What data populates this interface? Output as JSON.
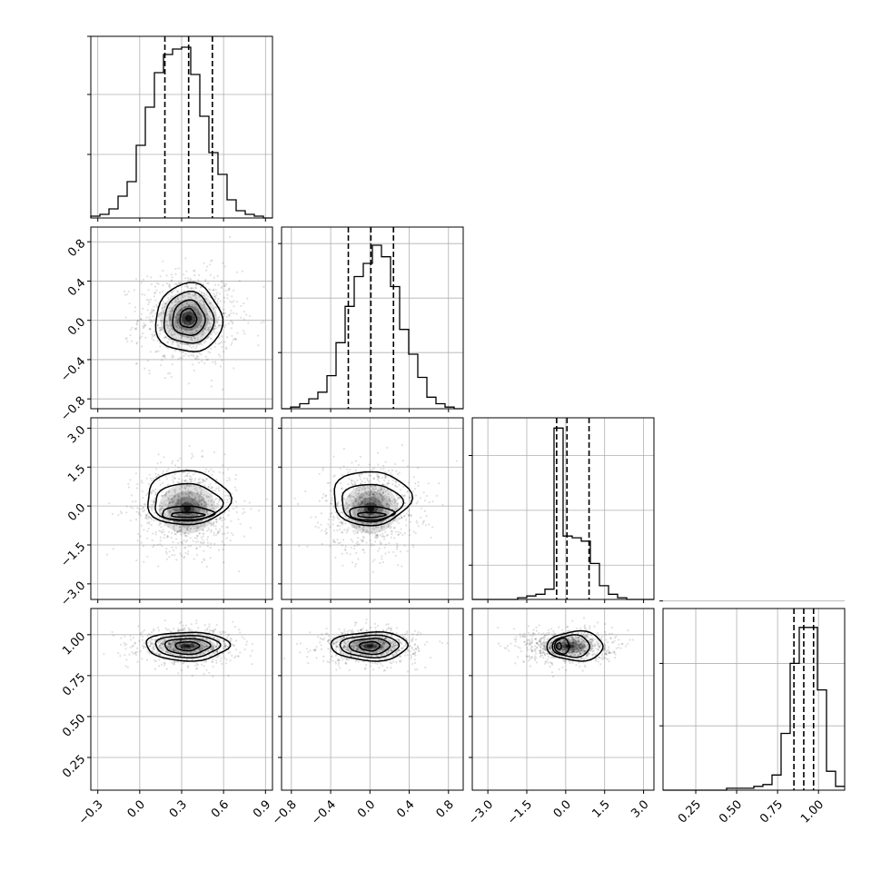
{
  "chart_data": {
    "type": "corner",
    "grid": true,
    "parameters": [
      {
        "range": [
          -0.35,
          0.95
        ],
        "ticks": [
          -0.3,
          0.0,
          0.3,
          0.6,
          0.9
        ],
        "tick_labels": [
          "−0.3",
          "0.0",
          "0.3",
          "0.6",
          "0.9"
        ],
        "quantiles": [
          0.18,
          0.35,
          0.52
        ]
      },
      {
        "range": [
          -0.9,
          0.95
        ],
        "ticks": [
          -0.8,
          -0.4,
          0.0,
          0.4,
          0.8
        ],
        "tick_labels": [
          "−0.8",
          "−0.4",
          "0.0",
          "0.4",
          "0.8"
        ],
        "quantiles": [
          -0.22,
          0.01,
          0.24
        ]
      },
      {
        "range": [
          -3.6,
          3.4
        ],
        "ticks": [
          -3.0,
          -1.5,
          0.0,
          1.5,
          3.0
        ],
        "tick_labels": [
          "−3.0",
          "−1.5",
          "0.0",
          "1.5",
          "3.0"
        ],
        "quantiles": [
          -0.35,
          0.05,
          0.9
        ]
      },
      {
        "range": [
          0.05,
          1.16
        ],
        "ticks": [
          0.25,
          0.5,
          0.75,
          1.0
        ],
        "tick_labels": [
          "0.25",
          "0.50",
          "0.75",
          "1.00"
        ],
        "quantiles": [
          0.85,
          0.91,
          0.97
        ]
      }
    ],
    "histograms": [
      {
        "edges_start": -0.35,
        "bin_width": 0.065,
        "counts": [
          0.01,
          0.02,
          0.05,
          0.12,
          0.2,
          0.4,
          0.61,
          0.8,
          0.9,
          0.93,
          0.94,
          0.79,
          0.56,
          0.36,
          0.24,
          0.1,
          0.04,
          0.02,
          0.01,
          0.0
        ],
        "ymax": 1.0,
        "yticks": [
          0.35,
          0.68,
          1.0
        ]
      },
      {
        "edges_start": -0.9,
        "bin_width": 0.0925,
        "counts": [
          0.0,
          0.01,
          0.03,
          0.06,
          0.1,
          0.2,
          0.4,
          0.62,
          0.8,
          0.88,
          0.99,
          0.92,
          0.74,
          0.48,
          0.33,
          0.19,
          0.07,
          0.03,
          0.01,
          0.0
        ],
        "ymax": 1.1,
        "yticks": [
          0.34,
          0.67,
          1.0
        ]
      },
      {
        "edges_start": -3.6,
        "bin_width": 0.35,
        "counts": [
          0.0,
          0.0,
          0.0,
          0.0,
          0.0,
          0.01,
          0.02,
          0.03,
          0.06,
          1.0,
          0.37,
          0.36,
          0.34,
          0.21,
          0.08,
          0.03,
          0.01,
          0.0,
          0.0,
          0.0
        ],
        "ymax": 1.06,
        "yticks": [
          0.2,
          0.52,
          0.84
        ]
      },
      {
        "edges_start": 0.05,
        "bin_width": 0.0555,
        "counts": [
          0.0,
          0.0,
          0.0,
          0.0,
          0.0,
          0.0,
          0.0,
          0.01,
          0.01,
          0.01,
          0.02,
          0.03,
          0.08,
          0.3,
          0.67,
          0.86,
          0.86,
          0.53,
          0.1,
          0.02
        ],
        "ymax": 0.96,
        "yticks": [
          0.34,
          0.67,
          1.0
        ]
      }
    ],
    "joint": [
      {
        "x_param": 0,
        "y_param": 1,
        "mean": [
          0.35,
          0.02
        ],
        "spread": [
          0.17,
          0.23
        ],
        "contours": [
          {
            "scale": [
              0.35,
              0.42
            ],
            "offset": [
              -0.02,
              0.0
            ]
          },
          {
            "scale": [
              0.68,
              0.78
            ],
            "offset": [
              0.0,
              0.0
            ]
          },
          {
            "scale": [
              1.04,
              1.14
            ],
            "offset": [
              0.0,
              0.0
            ]
          },
          {
            "scale": [
              1.4,
              1.52
            ],
            "offset": [
              0.0,
              -0.01
            ]
          }
        ]
      },
      {
        "x_param": 0,
        "y_param": 2,
        "mean": [
          0.34,
          -0.1
        ],
        "spread": [
          0.17,
          0.8
        ],
        "contours": [
          {
            "scale": [
              0.7,
              0.12
            ],
            "offset": [
              0.0,
              -0.3
            ]
          },
          {
            "scale": [
              1.1,
              0.33
            ],
            "offset": [
              0.0,
              -0.22
            ]
          },
          {
            "scale": [
              1.42,
              0.9
            ],
            "offset": [
              0.0,
              0.28
            ]
          },
          {
            "scale": [
              1.75,
              1.3
            ],
            "offset": [
              0.0,
              0.5
            ]
          }
        ]
      },
      {
        "x_param": 1,
        "y_param": 2,
        "mean": [
          0.01,
          -0.1
        ],
        "spread": [
          0.23,
          0.8
        ],
        "contours": [
          {
            "scale": [
              0.62,
              0.12
            ],
            "offset": [
              0.0,
              -0.3
            ]
          },
          {
            "scale": [
              1.0,
              0.33
            ],
            "offset": [
              0.0,
              -0.22
            ]
          },
          {
            "scale": [
              1.35,
              0.9
            ],
            "offset": [
              0.0,
              0.28
            ]
          },
          {
            "scale": [
              1.72,
              1.3
            ],
            "offset": [
              0.0,
              0.5
            ]
          }
        ]
      },
      {
        "x_param": 0,
        "y_param": 3,
        "mean": [
          0.34,
          0.93
        ],
        "spread": [
          0.17,
          0.05
        ],
        "contours": [
          {
            "scale": [
              0.5,
              0.55
            ],
            "offset": [
              0.0,
              0.0
            ]
          },
          {
            "scale": [
              0.95,
              0.95
            ],
            "offset": [
              0.0,
              0.0
            ]
          },
          {
            "scale": [
              1.35,
              1.35
            ],
            "offset": [
              0.0,
              0.0
            ]
          },
          {
            "scale": [
              1.75,
              1.75
            ],
            "offset": [
              0.0,
              0.0
            ]
          }
        ]
      },
      {
        "x_param": 1,
        "y_param": 3,
        "mean": [
          0.0,
          0.93
        ],
        "spread": [
          0.23,
          0.05
        ],
        "contours": [
          {
            "scale": [
              0.45,
              0.55
            ],
            "offset": [
              0.0,
              0.0
            ]
          },
          {
            "scale": [
              0.9,
              0.95
            ],
            "offset": [
              0.0,
              0.0
            ]
          },
          {
            "scale": [
              1.3,
              1.35
            ],
            "offset": [
              0.0,
              0.0
            ]
          },
          {
            "scale": [
              1.7,
              1.75
            ],
            "offset": [
              0.0,
              0.0
            ]
          }
        ]
      },
      {
        "x_param": 2,
        "y_param": 3,
        "mean": [
          0.1,
          0.93
        ],
        "spread": [
          0.8,
          0.05
        ],
        "contours": [
          {
            "scale": [
              0.12,
              0.4
            ],
            "offset": [
              -0.45,
              0.0
            ]
          },
          {
            "scale": [
              0.35,
              0.95
            ],
            "offset": [
              -0.3,
              0.0
            ]
          },
          {
            "scale": [
              0.9,
              1.35
            ],
            "offset": [
              0.15,
              0.0
            ]
          },
          {
            "scale": [
              1.35,
              1.8
            ],
            "offset": [
              0.35,
              0.0
            ]
          }
        ]
      }
    ],
    "colors": {
      "line": "#000000",
      "grid": "#b0b0b0",
      "points": "#000000",
      "density": "#000000"
    }
  }
}
